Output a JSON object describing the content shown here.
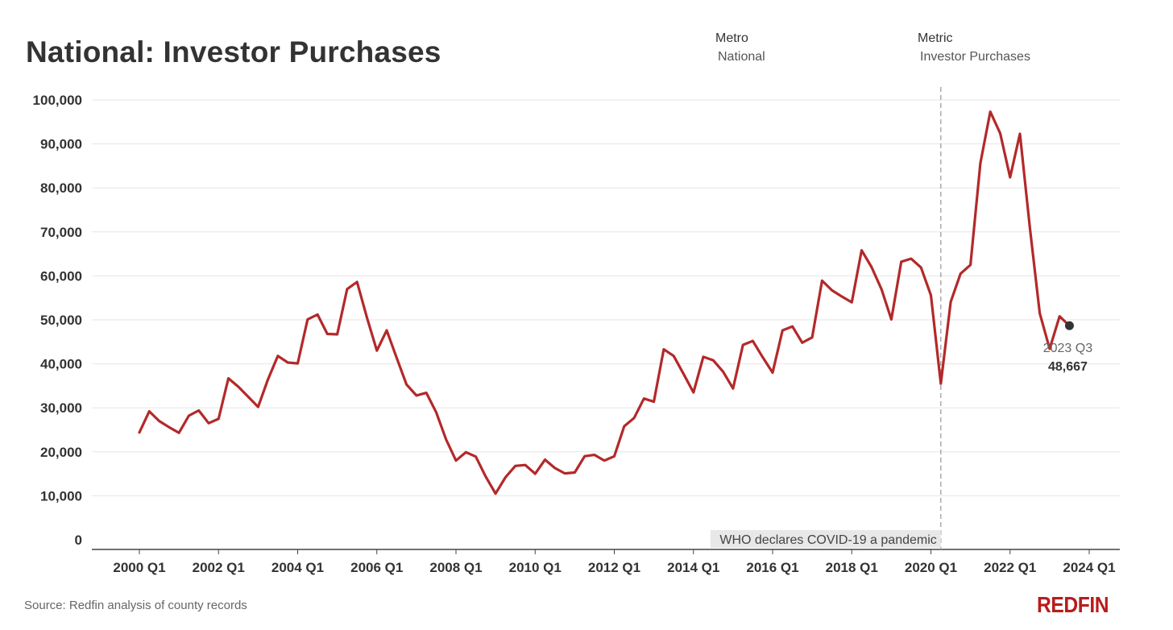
{
  "title": "National: Investor Purchases",
  "filters": {
    "metro": {
      "label": "Metro",
      "value": "National"
    },
    "metric": {
      "label": "Metric",
      "value": "Investor Purchases"
    }
  },
  "source": "Source: Redfin analysis of county records",
  "brand": "REDFIN",
  "colors": {
    "line": "#b3292a",
    "grid": "#e6e6e6",
    "text": "#333333",
    "annotation_bg": "#e8e8e8"
  },
  "chart_data": {
    "type": "line",
    "title": "National: Investor Purchases",
    "xlabel": "",
    "ylabel": "",
    "ylim": [
      0,
      100000
    ],
    "yticks": [
      0,
      10000,
      20000,
      30000,
      40000,
      50000,
      60000,
      70000,
      80000,
      90000,
      100000
    ],
    "ytick_labels": [
      "0",
      "10,000",
      "20,000",
      "30,000",
      "40,000",
      "50,000",
      "60,000",
      "70,000",
      "80,000",
      "90,000",
      "100,000"
    ],
    "xtick_labels": [
      "2000 Q1",
      "2002 Q1",
      "2004 Q1",
      "2006 Q1",
      "2008 Q1",
      "2010 Q1",
      "2012 Q1",
      "2014 Q1",
      "2016 Q1",
      "2018 Q1",
      "2020 Q1",
      "2022 Q1",
      "2024 Q1"
    ],
    "xtick_years": [
      2000,
      2002,
      2004,
      2006,
      2008,
      2010,
      2012,
      2014,
      2016,
      2018,
      2020,
      2022,
      2024
    ],
    "x_start": "2000 Q1",
    "series": [
      {
        "name": "Investor Purchases",
        "values": [
          24400,
          29200,
          27000,
          25600,
          24300,
          28200,
          29400,
          26500,
          27500,
          36700,
          34800,
          32500,
          30200,
          36500,
          41800,
          40300,
          40100,
          50100,
          51200,
          46800,
          46700,
          57000,
          58600,
          50500,
          43000,
          47600,
          41400,
          35300,
          32800,
          33400,
          29000,
          22800,
          18000,
          19900,
          18900,
          14400,
          10500,
          14200,
          16800,
          17000,
          15000,
          18200,
          16300,
          15100,
          15300,
          19000,
          19300,
          18000,
          19000,
          25800,
          27700,
          32100,
          31400,
          43300,
          41800,
          37700,
          33500,
          41600,
          40800,
          38200,
          34400,
          44300,
          45200,
          41500,
          38000,
          47600,
          48500,
          44800,
          46000,
          58900,
          56700,
          55300,
          54000,
          65800,
          62000,
          57000,
          50100,
          63200,
          63900,
          61900,
          55600,
          35500,
          54100,
          60500,
          62500,
          85600,
          97300,
          92400,
          82400,
          92300,
          71000,
          51500,
          43400,
          50800,
          48667
        ]
      }
    ],
    "annotations": [
      {
        "type": "vline",
        "x": "2020 Q2",
        "label": "WHO declares COVID-19 a pandemic"
      },
      {
        "type": "point",
        "x": "2023 Q3",
        "label": "2023 Q3",
        "value_label": "48,667",
        "value": 48667
      }
    ]
  }
}
